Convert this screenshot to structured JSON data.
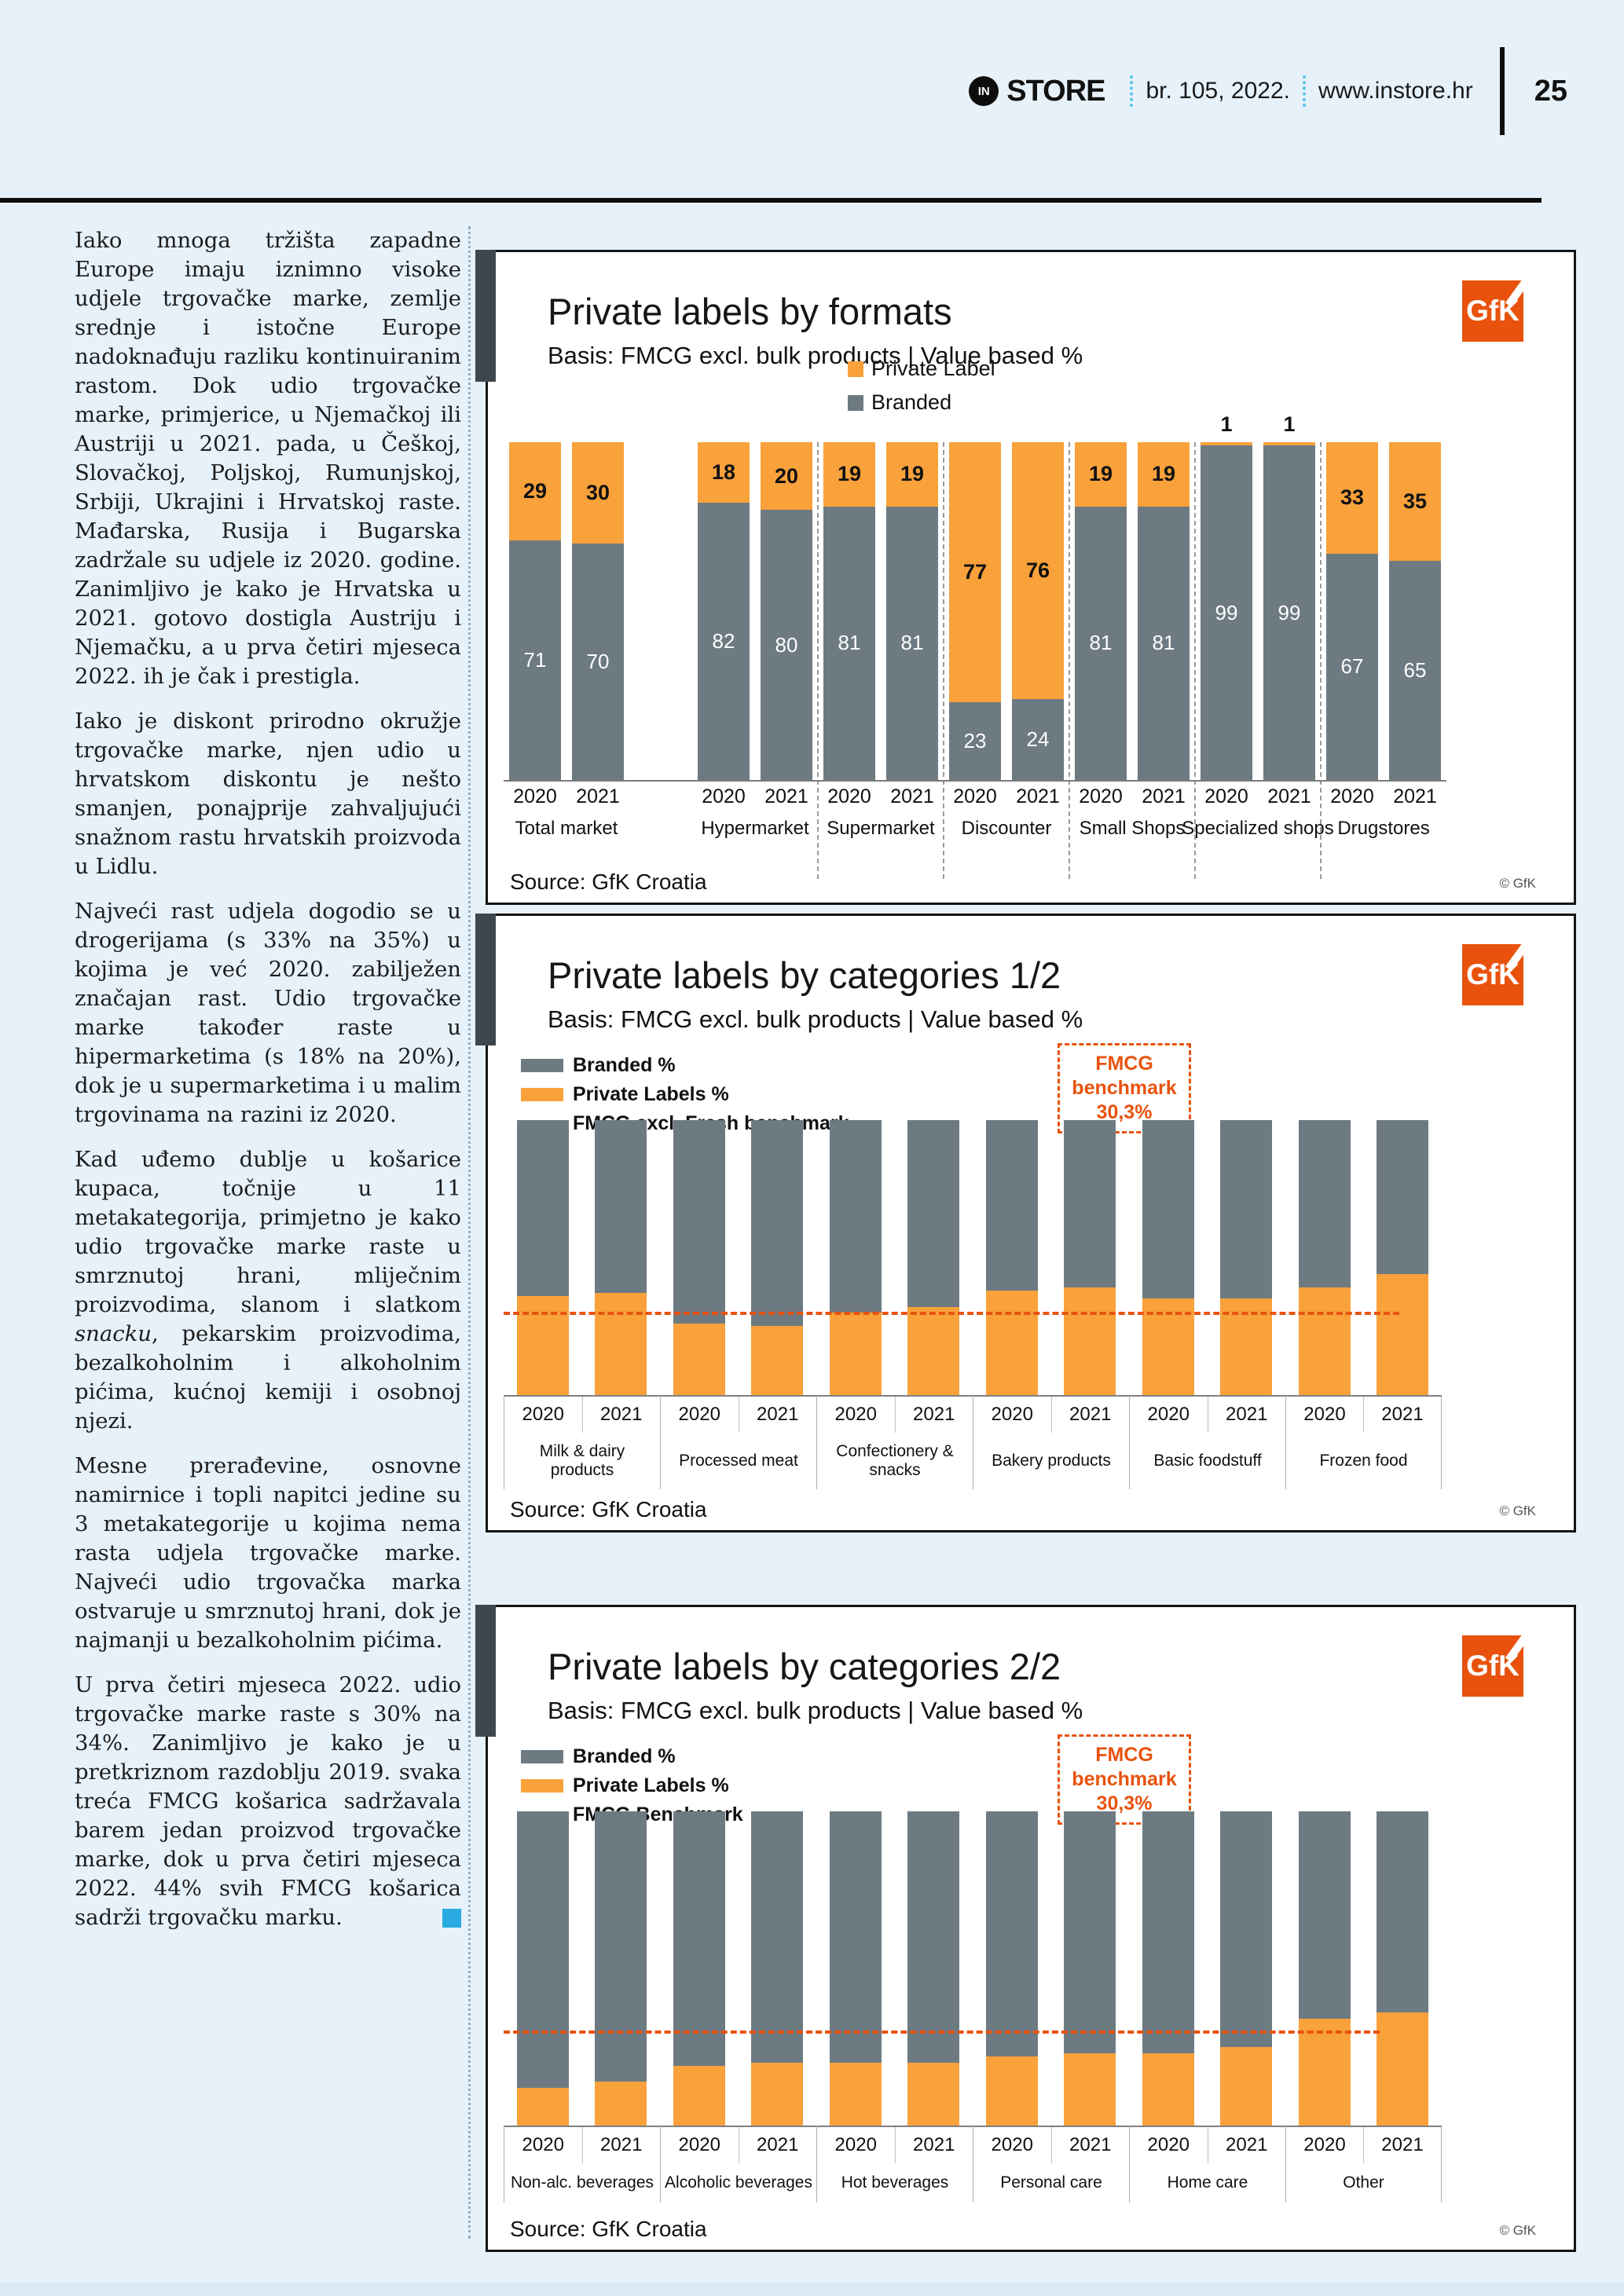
{
  "header": {
    "logo_monogram": "IN",
    "brand": "STORE",
    "issue": "br. 105, 2022.",
    "site": "www.instore.hr",
    "page_number": "25"
  },
  "article": {
    "p1": "Iako mnoga tržišta zapadne Europe imaju iznimno visoke udjele trgovačke marke, zemlje srednje i istočne Europe nadoknađuju razliku kontinuiranim rastom. Dok udio trgovačke marke, primjerice, u Njemačkoj ili Austriji u 2021. pada, u Češkoj, Slovačkoj, Poljskoj, Rumunjskoj, Srbiji, Ukrajini i Hrvatskoj raste. Mađarska, Rusija i Bugarska zadržale su udjele iz 2020. godine. Zanimljivo je kako je Hrvatska u 2021. gotovo dostigla Austriju i Njemačku, a u prva četiri mjeseca 2022. ih je čak i prestigla.",
    "p2": "Iako je diskont prirodno okružje trgovačke marke, njen udio u hrvatskom diskontu je nešto smanjen, ponajprije zahvaljujući snažnom rastu hrvatskih proizvoda u Lidlu.",
    "p3": "Najveći rast udjela dogodio se u drogerijama (s 33% na 35%) u kojima je već 2020. zabilježen značajan rast. Udio trgovačke marke također raste u hipermarketima (s 18% na 20%), dok je u supermarketima i u malim trgovinama na razini iz 2020.",
    "p4_pre": "Kad uđemo dublje u košarice kupaca, točnije u 11 metakategorija, primjetno je kako udio trgovačke marke raste u smrznutoj hrani, mliječnim proizvodima, slanom i slatkom ",
    "p4_italic": "snacku",
    "p4_post": ", pekarskim proizvodima, bezalkoholnim i alkoholnim pićima, kućnoj kemiji i osobnoj njezi.",
    "p5": "Mesne prerađevine, osnovne namirnice i topli napitci jedine su 3 metakategorije u kojima nema rasta udjela trgovačke marke. Najveći udio trgovačka marka ostvaruje u smrznutoj hrani, dok je najmanji u bezalkoholnim pićima.",
    "p6": "U prva četiri mjeseca 2022. udio trgovačke marke raste s 30% na 34%. Zanimljivo je kako je u pretkriznom razdoblju 2019. svaka treća FMCG košarica sadržavala barem jedan proizvod trgovačke marke, dok u prva četiri mjeseca 2022. 44% svih FMCG košarica sadrži trgovačku marku."
  },
  "theme": {
    "page_bg": "#E7F1FA",
    "private_label_orange": "#F9A13B",
    "branded_gray": "#6D7A82",
    "benchmark_orange": "#E8530F",
    "gfk_logo_orange": "#E8520C",
    "accent_bar_gray": "#3F474E",
    "end_square_cyan": "#29ABE2"
  },
  "chart_data": [
    {
      "type": "bar",
      "stacked": true,
      "title": "Private labels by formats",
      "subtitle": "Basis: FMCG excl. bulk products | Value based %",
      "legend": [
        "Private Label",
        "Branded"
      ],
      "logo_text": "GfK",
      "years": [
        "2020",
        "2021"
      ],
      "ylim": [
        0,
        100
      ],
      "groups": [
        {
          "label": "Total market",
          "private_label": [
            29,
            30
          ],
          "branded": [
            71,
            70
          ]
        },
        {
          "label": "Hypermarket",
          "private_label": [
            18,
            20
          ],
          "branded": [
            82,
            80
          ]
        },
        {
          "label": "Supermarket",
          "private_label": [
            19,
            19
          ],
          "branded": [
            81,
            81
          ]
        },
        {
          "label": "Discounter",
          "private_label": [
            77,
            76
          ],
          "branded": [
            23,
            24
          ]
        },
        {
          "label": "Small Shops",
          "private_label": [
            19,
            19
          ],
          "branded": [
            81,
            81
          ]
        },
        {
          "label": "Specialized shops",
          "private_label": [
            1,
            1
          ],
          "branded": [
            99,
            99
          ]
        },
        {
          "label": "Drugstores",
          "private_label": [
            33,
            35
          ],
          "branded": [
            67,
            65
          ]
        }
      ],
      "source": "Source: GfK Croatia",
      "copyright": "© GfK"
    },
    {
      "type": "bar",
      "stacked": true,
      "title": "Private labels by categories 1/2",
      "subtitle": "Basis: FMCG excl. bulk products | Value based %",
      "legend": [
        "Branded %",
        "Private Labels %",
        "FMCG excl. Fresh benchmark"
      ],
      "logo_text": "GfK",
      "benchmark_label": "FMCG benchmark 30,3%",
      "benchmark_value": 30.3,
      "years": [
        "2020",
        "2021"
      ],
      "ylim": [
        0,
        100
      ],
      "groups": [
        {
          "label": "Milk & dairy products",
          "private_label": [
            36,
            37
          ]
        },
        {
          "label": "Processed meat",
          "private_label": [
            26,
            25
          ]
        },
        {
          "label": "Confectionery & snacks",
          "private_label": [
            30,
            32
          ]
        },
        {
          "label": "Bakery products",
          "private_label": [
            38,
            39
          ]
        },
        {
          "label": "Basic foodstuff",
          "private_label": [
            35,
            35
          ]
        },
        {
          "label": "Frozen food",
          "private_label": [
            39,
            44
          ]
        }
      ],
      "source": "Source: GfK Croatia",
      "copyright": "© GfK"
    },
    {
      "type": "bar",
      "stacked": true,
      "title": "Private labels by categories 2/2",
      "subtitle": "Basis: FMCG excl. bulk products | Value based %",
      "legend": [
        "Branded %",
        "Private Labels %",
        "FMCG Benchmark"
      ],
      "logo_text": "GfK",
      "benchmark_label": "FMCG benchmark 30,3%",
      "benchmark_value": 30.3,
      "years": [
        "2020",
        "2021"
      ],
      "ylim": [
        0,
        100
      ],
      "groups": [
        {
          "label": "Non-alc. beverages",
          "private_label": [
            12,
            14
          ]
        },
        {
          "label": "Alcoholic beverages",
          "private_label": [
            19,
            20
          ]
        },
        {
          "label": "Hot beverages",
          "private_label": [
            20,
            20
          ]
        },
        {
          "label": "Personal care",
          "private_label": [
            22,
            23
          ]
        },
        {
          "label": "Home care",
          "private_label": [
            23,
            25
          ]
        },
        {
          "label": "Other",
          "private_label": [
            34,
            36
          ]
        }
      ],
      "source": "Source: GfK Croatia",
      "copyright": "© GfK"
    }
  ]
}
